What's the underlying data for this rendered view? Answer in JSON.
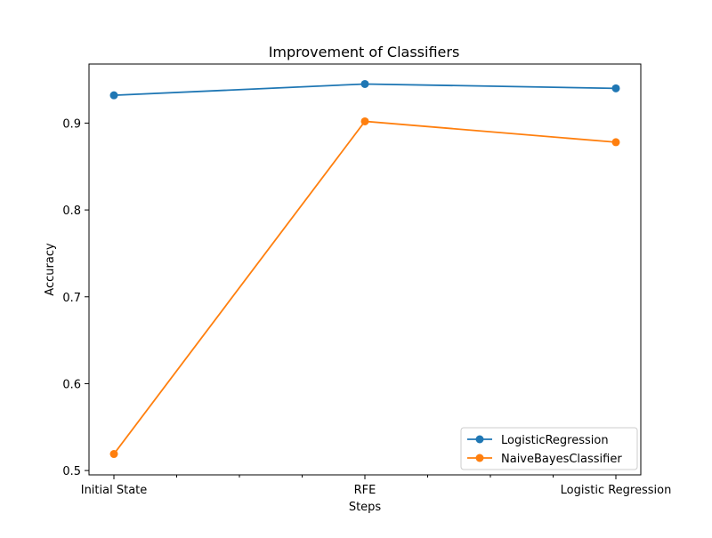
{
  "chart_data": {
    "type": "line",
    "title": "Improvement of Classifiers",
    "xlabel": "Steps",
    "ylabel": "Accuracy",
    "categories": [
      "Initial State",
      "RFE",
      "Logistic Regression"
    ],
    "ylim": [
      0.495,
      0.968
    ],
    "yticks": [
      0.5,
      0.6,
      0.7,
      0.8,
      0.9
    ],
    "ytick_labels": [
      "0.5",
      "0.6",
      "0.7",
      "0.8",
      "0.9"
    ],
    "grid": false,
    "legend_position": "lower-right",
    "series": [
      {
        "name": "LogisticRegression",
        "color": "#1f77b4",
        "marker": "circle",
        "values": [
          0.932,
          0.945,
          0.94
        ]
      },
      {
        "name": "NaiveBayesClassifier",
        "color": "#ff7f0e",
        "marker": "circle",
        "values": [
          0.519,
          0.902,
          0.878
        ]
      }
    ]
  }
}
